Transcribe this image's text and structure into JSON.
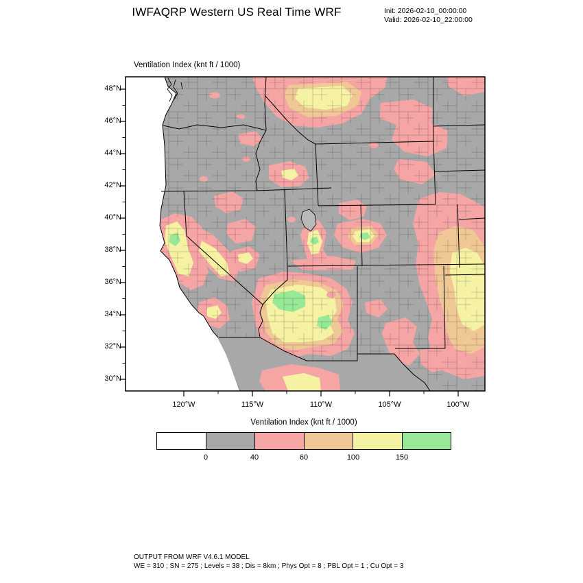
{
  "header": {
    "title": "IWFAQRP Western US Real Time WRF",
    "init": "Init: 2026-02-10_00:00:00",
    "valid": "Valid: 2026-02-10_22:00:00"
  },
  "map": {
    "panel_label": "Ventilation Index (knt ft / 1000)",
    "y_ticks": [
      "48°N",
      "46°N",
      "44°N",
      "42°N",
      "40°N",
      "38°N",
      "36°N",
      "34°N",
      "32°N",
      "30°N"
    ],
    "x_ticks": [
      "120°W",
      "115°W",
      "110°W",
      "105°W",
      "100°W"
    ]
  },
  "colorbar": {
    "label": "Ventilation Index (knt ft / 1000)",
    "tick_labels": [
      "0",
      "40",
      "60",
      "100",
      "150"
    ],
    "colors": [
      "#ffffff",
      "#a8a8a8",
      "#f6a5a5",
      "#f0c896",
      "#f5f2a3",
      "#97e897"
    ]
  },
  "footer": {
    "line1": "OUTPUT FROM WRF V4.6.1 MODEL",
    "line2": "WE = 310 ; SN = 275 ; Levels = 38 ; Dis = 8km ; Phys Opt = 8 ; PBL Opt = 1 ; Cu Opt = 3"
  },
  "palette": {
    "ocean": "#ffffff",
    "land_low": "#a8a8a8",
    "pink": "#f6a5a5",
    "tan": "#f0c896",
    "yellow": "#f5f2a3",
    "green": "#97e897",
    "border": "#000000"
  },
  "chart_data": {
    "type": "heatmap",
    "title": "IWFAQRP Western US Real Time WRF",
    "subtitle": "Ventilation Index (knt ft / 1000)",
    "variable": "Ventilation Index",
    "units": "knt ft / 1000",
    "init_time": "2026-02-10_00:00:00",
    "valid_time": "2026-02-10_22:00:00",
    "region": "Western US (filled-contour map over state and county boundaries)",
    "x_axis": {
      "tick_labels": [
        "120°W",
        "115°W",
        "110°W",
        "105°W",
        "100°W"
      ],
      "range_deg_west": [
        124.3,
        98.0
      ]
    },
    "y_axis": {
      "tick_labels": [
        "48°N",
        "46°N",
        "44°N",
        "42°N",
        "40°N",
        "38°N",
        "36°N",
        "34°N",
        "32°N",
        "30°N"
      ],
      "range_deg_north": [
        29.3,
        48.8
      ]
    },
    "colorbar_levels": [
      0,
      40,
      60,
      100,
      150
    ],
    "bins": [
      {
        "range": "< 0",
        "color": "#ffffff"
      },
      {
        "range": "0 - 40",
        "color": "#a8a8a8"
      },
      {
        "range": "40 - 60",
        "color": "#f6a5a5"
      },
      {
        "range": "60 - 100",
        "color": "#f0c896"
      },
      {
        "range": "100 - 150",
        "color": "#f5f2a3"
      },
      {
        "range": "> 150",
        "color": "#97e897"
      }
    ],
    "legend_position": "bottom",
    "grid": false,
    "high_value_regions": [
      "California Central Valley and Sierra foothills (yellow, small green core)",
      "Central/southern Arizona (large yellow area with green cores)",
      "High Plains of E Colorado / W Kansas / OK-TX panhandles (pink with tan-yellow core)",
      "Northern Montana / Idaho border (pink band with tan-yellow core)",
      "Small yellow-green spots in central Utah and central Colorado"
    ],
    "model": "WRF V4.6.1",
    "model_config": "WE = 310 ; SN = 275 ; Levels = 38 ; Dis = 8km ; Phys Opt = 8 ; PBL Opt = 1 ; Cu Opt = 3"
  }
}
